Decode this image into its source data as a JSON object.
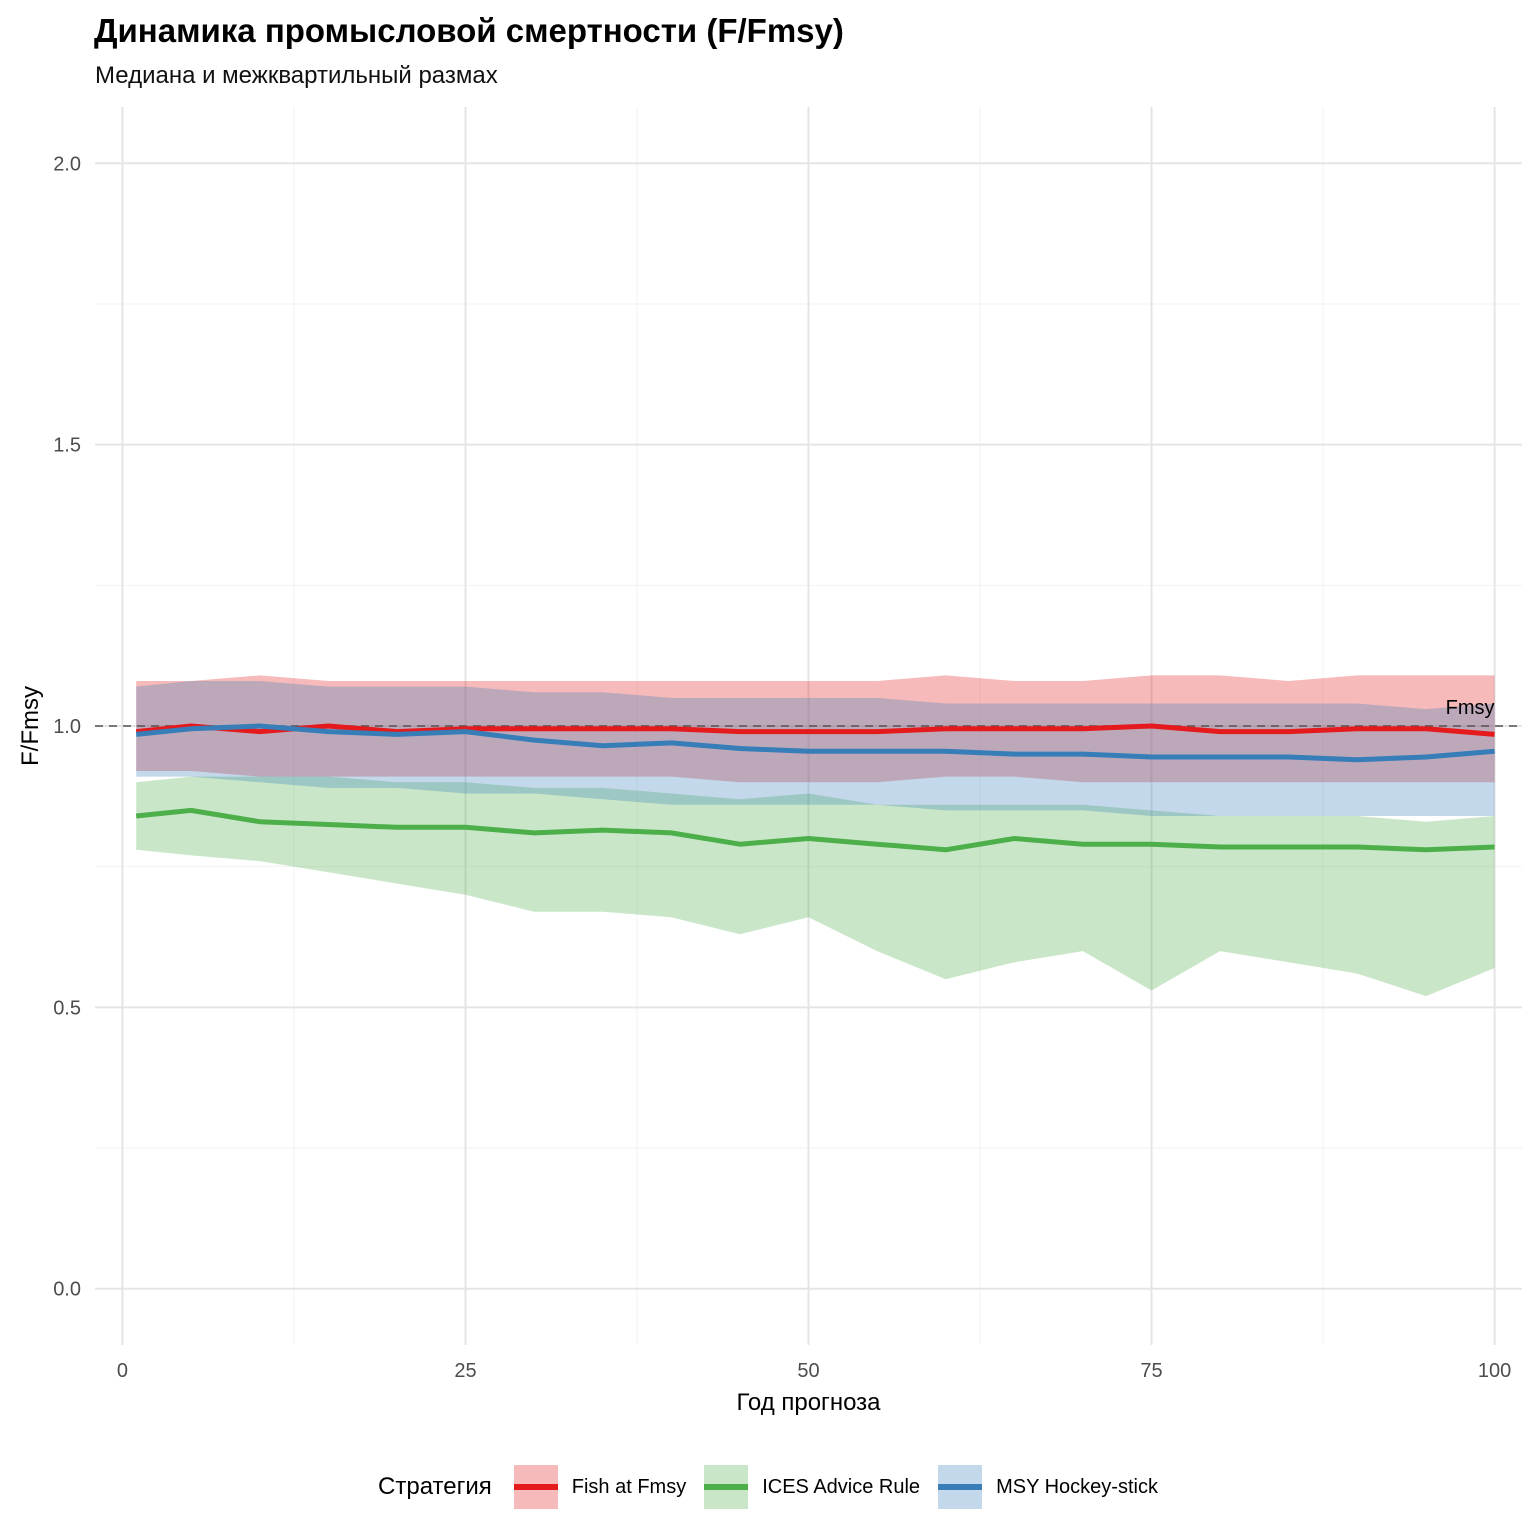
{
  "title": "Динамика промысловой смертности (F/Fmsy)",
  "subtitle": "Медиана и межквартильный размах",
  "chart_data": {
    "type": "line",
    "xlabel": "Год прогноза",
    "ylabel": "F/Fmsy",
    "xlim": [
      -2,
      102
    ],
    "ylim": [
      -0.1,
      2.1
    ],
    "x_ticks": [
      0,
      25,
      50,
      75,
      100
    ],
    "x_tick_labels": [
      "0",
      "25",
      "50",
      "75",
      "100"
    ],
    "y_ticks": [
      0,
      0.5,
      1,
      1.5,
      2
    ],
    "y_tick_labels": [
      "0.0",
      "0.5",
      "1.0",
      "1.5",
      "2.0"
    ],
    "grid": true,
    "reference_line": {
      "y": 1.0,
      "style": "dashed",
      "label": "Fmsy"
    },
    "legend_title": "Стратегия",
    "legend_position": "bottom",
    "x": [
      1,
      5,
      10,
      15,
      20,
      25,
      30,
      35,
      40,
      45,
      50,
      55,
      60,
      65,
      70,
      75,
      80,
      85,
      90,
      95,
      100
    ],
    "series": [
      {
        "name": "Fish at Fmsy",
        "color": "#E41A1C",
        "median": [
          0.99,
          1.0,
          0.99,
          1.0,
          0.99,
          0.995,
          0.995,
          0.995,
          0.995,
          0.99,
          0.99,
          0.99,
          0.995,
          0.995,
          0.995,
          1.0,
          0.99,
          0.99,
          0.995,
          0.995,
          0.985
        ],
        "q25": [
          0.92,
          0.92,
          0.91,
          0.91,
          0.91,
          0.91,
          0.91,
          0.91,
          0.91,
          0.9,
          0.9,
          0.9,
          0.91,
          0.91,
          0.9,
          0.9,
          0.9,
          0.9,
          0.9,
          0.9,
          0.9
        ],
        "q75": [
          1.08,
          1.08,
          1.09,
          1.08,
          1.08,
          1.08,
          1.08,
          1.08,
          1.08,
          1.08,
          1.08,
          1.08,
          1.09,
          1.08,
          1.08,
          1.09,
          1.09,
          1.08,
          1.09,
          1.09,
          1.09
        ]
      },
      {
        "name": "ICES Advice Rule",
        "color": "#4DAF4A",
        "median": [
          0.84,
          0.85,
          0.83,
          0.825,
          0.82,
          0.82,
          0.81,
          0.815,
          0.81,
          0.79,
          0.8,
          0.79,
          0.78,
          0.8,
          0.79,
          0.79,
          0.785,
          0.785,
          0.785,
          0.78,
          0.785
        ],
        "q25": [
          0.78,
          0.77,
          0.76,
          0.74,
          0.72,
          0.7,
          0.67,
          0.67,
          0.66,
          0.63,
          0.66,
          0.6,
          0.55,
          0.58,
          0.6,
          0.53,
          0.6,
          0.58,
          0.56,
          0.52,
          0.57
        ],
        "q75": [
          0.9,
          0.91,
          0.91,
          0.91,
          0.9,
          0.9,
          0.89,
          0.89,
          0.88,
          0.87,
          0.88,
          0.86,
          0.86,
          0.86,
          0.86,
          0.85,
          0.84,
          0.84,
          0.84,
          0.83,
          0.84
        ]
      },
      {
        "name": "MSY Hockey-stick",
        "color": "#377EB8",
        "median": [
          0.985,
          0.995,
          1.0,
          0.99,
          0.985,
          0.99,
          0.975,
          0.965,
          0.97,
          0.96,
          0.955,
          0.955,
          0.955,
          0.95,
          0.95,
          0.945,
          0.945,
          0.945,
          0.94,
          0.945,
          0.955
        ],
        "q25": [
          0.91,
          0.91,
          0.9,
          0.89,
          0.89,
          0.88,
          0.88,
          0.87,
          0.86,
          0.86,
          0.86,
          0.86,
          0.85,
          0.85,
          0.85,
          0.84,
          0.84,
          0.84,
          0.84,
          0.84,
          0.84
        ],
        "q75": [
          1.07,
          1.08,
          1.08,
          1.07,
          1.07,
          1.07,
          1.06,
          1.06,
          1.05,
          1.05,
          1.05,
          1.05,
          1.04,
          1.04,
          1.04,
          1.04,
          1.04,
          1.04,
          1.04,
          1.03,
          1.04
        ]
      }
    ]
  }
}
